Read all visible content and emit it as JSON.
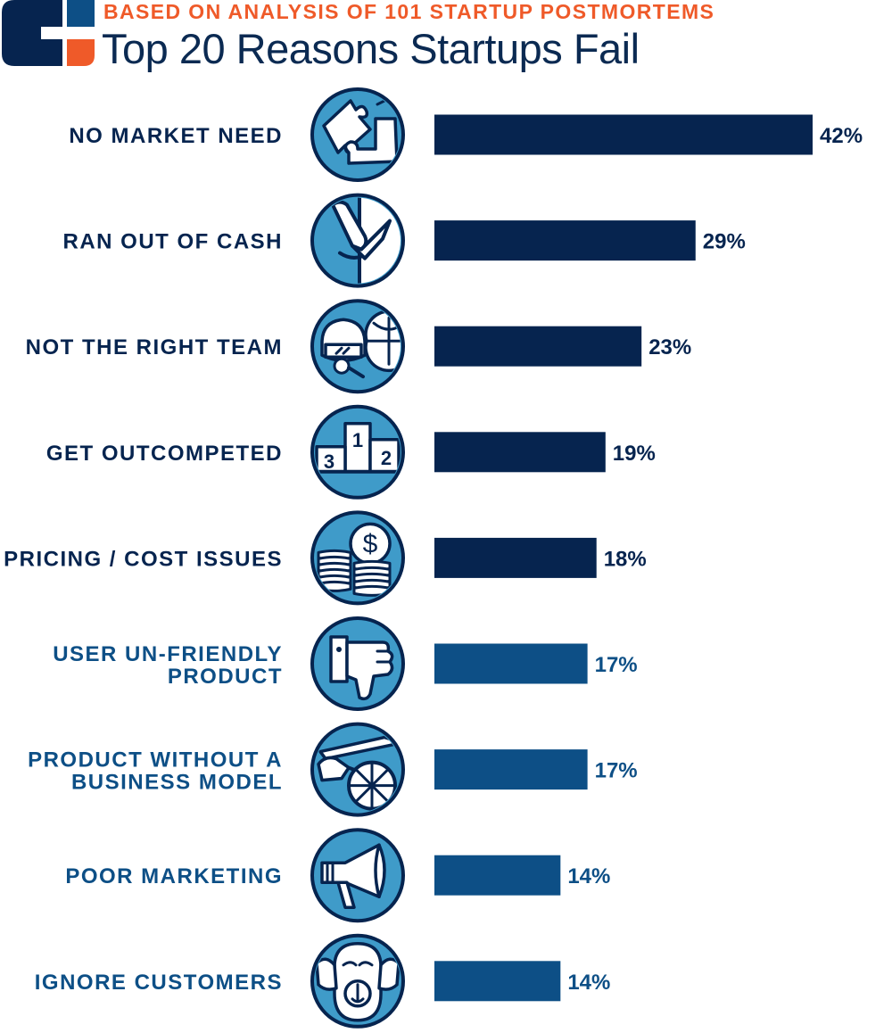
{
  "header": {
    "subtitle": "BASED ON ANALYSIS OF 101 STARTUP POSTMORTEMS",
    "title": "Top 20 Reasons Startups Fail"
  },
  "colors": {
    "navy": "#06244f",
    "steel": "#0d4f86",
    "icon_fill": "#3f9bc9",
    "accent": "#ef5a29"
  },
  "chart_data": {
    "type": "bar",
    "orientation": "horizontal",
    "title": "Top 20 Reasons Startups Fail",
    "subtitle": "BASED ON ANALYSIS OF 101 STARTUP POSTMORTEMS",
    "categories": [
      "NO MARKET NEED",
      "RAN OUT OF CASH",
      "NOT THE RIGHT TEAM",
      "GET OUTCOMPETED",
      "PRICING / COST ISSUES",
      "USER UN-FRIENDLY PRODUCT",
      "PRODUCT WITHOUT A BUSINESS MODEL",
      "POOR MARKETING",
      "IGNORE CUSTOMERS"
    ],
    "label_lines": [
      [
        "NO MARKET NEED"
      ],
      [
        "RAN OUT OF CASH"
      ],
      [
        "NOT THE RIGHT TEAM"
      ],
      [
        "GET OUTCOMPETED"
      ],
      [
        "PRICING / COST ISSUES"
      ],
      [
        "USER UN-FRIENDLY",
        "PRODUCT"
      ],
      [
        "PRODUCT WITHOUT A",
        "BUSINESS MODEL"
      ],
      [
        "POOR MARKETING"
      ],
      [
        "IGNORE CUSTOMERS"
      ]
    ],
    "values": [
      42,
      29,
      23,
      19,
      18,
      17,
      17,
      14,
      14
    ],
    "value_labels": [
      "42%",
      "29%",
      "23%",
      "19%",
      "18%",
      "17%",
      "17%",
      "14%",
      "14%"
    ],
    "icons": [
      "puzzle-icon",
      "knife-icon",
      "team-icon",
      "podium-icon",
      "coins-icon",
      "thumbs-down-icon",
      "cart-icon",
      "megaphone-icon",
      "monkey-icon"
    ],
    "series_colors": [
      "#06244f",
      "#06244f",
      "#06244f",
      "#06244f",
      "#06244f",
      "#0d4f86",
      "#0d4f86",
      "#0d4f86",
      "#0d4f86"
    ],
    "podium_labels": [
      "3",
      "1",
      "2"
    ],
    "xlim": [
      0,
      42
    ],
    "grid": false,
    "legend": "none"
  }
}
